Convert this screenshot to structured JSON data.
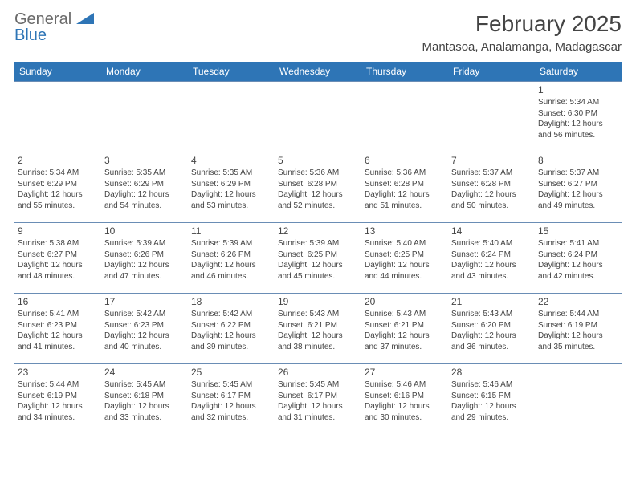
{
  "logo": {
    "general": "General",
    "blue": "Blue"
  },
  "title": "February 2025",
  "location": "Mantasoa, Analamanga, Madagascar",
  "headers": [
    "Sunday",
    "Monday",
    "Tuesday",
    "Wednesday",
    "Thursday",
    "Friday",
    "Saturday"
  ],
  "colors": {
    "header_bg": "#2e75b6",
    "header_text": "#ffffff",
    "line": "#6a8db5",
    "logo_accent": "#2e75b6"
  },
  "weeks": [
    [
      null,
      null,
      null,
      null,
      null,
      null,
      {
        "n": "1",
        "sr": "5:34 AM",
        "ss": "6:30 PM",
        "dl": "12 hours and 56 minutes."
      }
    ],
    [
      {
        "n": "2",
        "sr": "5:34 AM",
        "ss": "6:29 PM",
        "dl": "12 hours and 55 minutes."
      },
      {
        "n": "3",
        "sr": "5:35 AM",
        "ss": "6:29 PM",
        "dl": "12 hours and 54 minutes."
      },
      {
        "n": "4",
        "sr": "5:35 AM",
        "ss": "6:29 PM",
        "dl": "12 hours and 53 minutes."
      },
      {
        "n": "5",
        "sr": "5:36 AM",
        "ss": "6:28 PM",
        "dl": "12 hours and 52 minutes."
      },
      {
        "n": "6",
        "sr": "5:36 AM",
        "ss": "6:28 PM",
        "dl": "12 hours and 51 minutes."
      },
      {
        "n": "7",
        "sr": "5:37 AM",
        "ss": "6:28 PM",
        "dl": "12 hours and 50 minutes."
      },
      {
        "n": "8",
        "sr": "5:37 AM",
        "ss": "6:27 PM",
        "dl": "12 hours and 49 minutes."
      }
    ],
    [
      {
        "n": "9",
        "sr": "5:38 AM",
        "ss": "6:27 PM",
        "dl": "12 hours and 48 minutes."
      },
      {
        "n": "10",
        "sr": "5:39 AM",
        "ss": "6:26 PM",
        "dl": "12 hours and 47 minutes."
      },
      {
        "n": "11",
        "sr": "5:39 AM",
        "ss": "6:26 PM",
        "dl": "12 hours and 46 minutes."
      },
      {
        "n": "12",
        "sr": "5:39 AM",
        "ss": "6:25 PM",
        "dl": "12 hours and 45 minutes."
      },
      {
        "n": "13",
        "sr": "5:40 AM",
        "ss": "6:25 PM",
        "dl": "12 hours and 44 minutes."
      },
      {
        "n": "14",
        "sr": "5:40 AM",
        "ss": "6:24 PM",
        "dl": "12 hours and 43 minutes."
      },
      {
        "n": "15",
        "sr": "5:41 AM",
        "ss": "6:24 PM",
        "dl": "12 hours and 42 minutes."
      }
    ],
    [
      {
        "n": "16",
        "sr": "5:41 AM",
        "ss": "6:23 PM",
        "dl": "12 hours and 41 minutes."
      },
      {
        "n": "17",
        "sr": "5:42 AM",
        "ss": "6:23 PM",
        "dl": "12 hours and 40 minutes."
      },
      {
        "n": "18",
        "sr": "5:42 AM",
        "ss": "6:22 PM",
        "dl": "12 hours and 39 minutes."
      },
      {
        "n": "19",
        "sr": "5:43 AM",
        "ss": "6:21 PM",
        "dl": "12 hours and 38 minutes."
      },
      {
        "n": "20",
        "sr": "5:43 AM",
        "ss": "6:21 PM",
        "dl": "12 hours and 37 minutes."
      },
      {
        "n": "21",
        "sr": "5:43 AM",
        "ss": "6:20 PM",
        "dl": "12 hours and 36 minutes."
      },
      {
        "n": "22",
        "sr": "5:44 AM",
        "ss": "6:19 PM",
        "dl": "12 hours and 35 minutes."
      }
    ],
    [
      {
        "n": "23",
        "sr": "5:44 AM",
        "ss": "6:19 PM",
        "dl": "12 hours and 34 minutes."
      },
      {
        "n": "24",
        "sr": "5:45 AM",
        "ss": "6:18 PM",
        "dl": "12 hours and 33 minutes."
      },
      {
        "n": "25",
        "sr": "5:45 AM",
        "ss": "6:17 PM",
        "dl": "12 hours and 32 minutes."
      },
      {
        "n": "26",
        "sr": "5:45 AM",
        "ss": "6:17 PM",
        "dl": "12 hours and 31 minutes."
      },
      {
        "n": "27",
        "sr": "5:46 AM",
        "ss": "6:16 PM",
        "dl": "12 hours and 30 minutes."
      },
      {
        "n": "28",
        "sr": "5:46 AM",
        "ss": "6:15 PM",
        "dl": "12 hours and 29 minutes."
      },
      null
    ]
  ],
  "labels": {
    "sunrise": "Sunrise:",
    "sunset": "Sunset:",
    "daylight": "Daylight:"
  }
}
